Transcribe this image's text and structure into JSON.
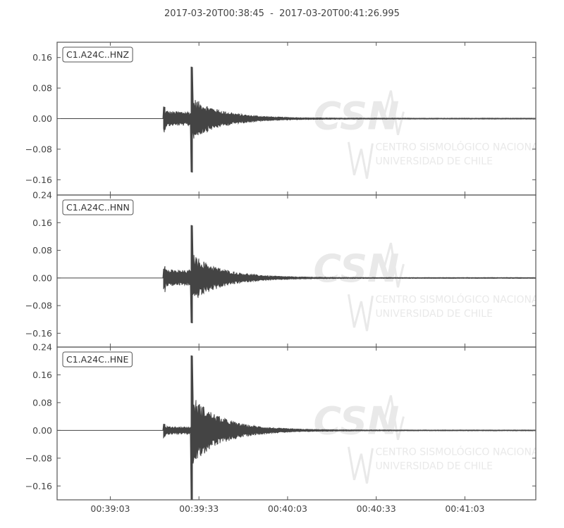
{
  "chart_data": {
    "type": "line",
    "title": "2017-03-20T00:38:45  -  2017-03-20T00:41:26.995",
    "x_ticks": [
      "00:39:03",
      "00:39:33",
      "00:40:03",
      "00:40:33",
      "00:41:03"
    ],
    "x_start": "2017-03-20T00:38:45",
    "x_end": "2017-03-20T00:41:26.995",
    "grid": false,
    "line_color": "#444444",
    "watermark_color": "#e9e9e9",
    "panels": [
      {
        "name": "C1.A24C..HNZ",
        "y_ticks": [
          "0.16",
          "0.08",
          "0.00",
          "-0.08",
          "-0.16"
        ],
        "ylim": [
          -0.2,
          0.2
        ],
        "onset_s": 36.0,
        "peak_s": 45.5,
        "pre_peak_amp": 0.025,
        "peak_max": 0.135,
        "peak_min": -0.14,
        "coda_amp": 0.055
      },
      {
        "name": "C1.A24C..HNN",
        "y_ticks": [
          "0.24",
          "0.16",
          "0.08",
          "0.00",
          "-0.08",
          "-0.16"
        ],
        "ylim": [
          -0.2,
          0.24
        ],
        "onset_s": 36.0,
        "peak_s": 45.5,
        "pre_peak_amp": 0.03,
        "peak_max": 0.152,
        "peak_min": -0.13,
        "coda_amp": 0.07
      },
      {
        "name": "C1.A24C..HNE",
        "y_ticks": [
          "0.24",
          "0.16",
          "0.08",
          "0.00",
          "-0.08",
          "-0.16"
        ],
        "ylim": [
          -0.2,
          0.24
        ],
        "onset_s": 36.0,
        "peak_s": 45.5,
        "pre_peak_amp": 0.014,
        "peak_max": 0.215,
        "peak_min": -0.2,
        "coda_amp": 0.1
      }
    ],
    "watermark": {
      "text": "CSN",
      "subtitle_lines": [
        "CENTRO SISMOLÓGICO NACIONAL",
        "UNIVERSIDAD DE CHILE"
      ]
    }
  }
}
